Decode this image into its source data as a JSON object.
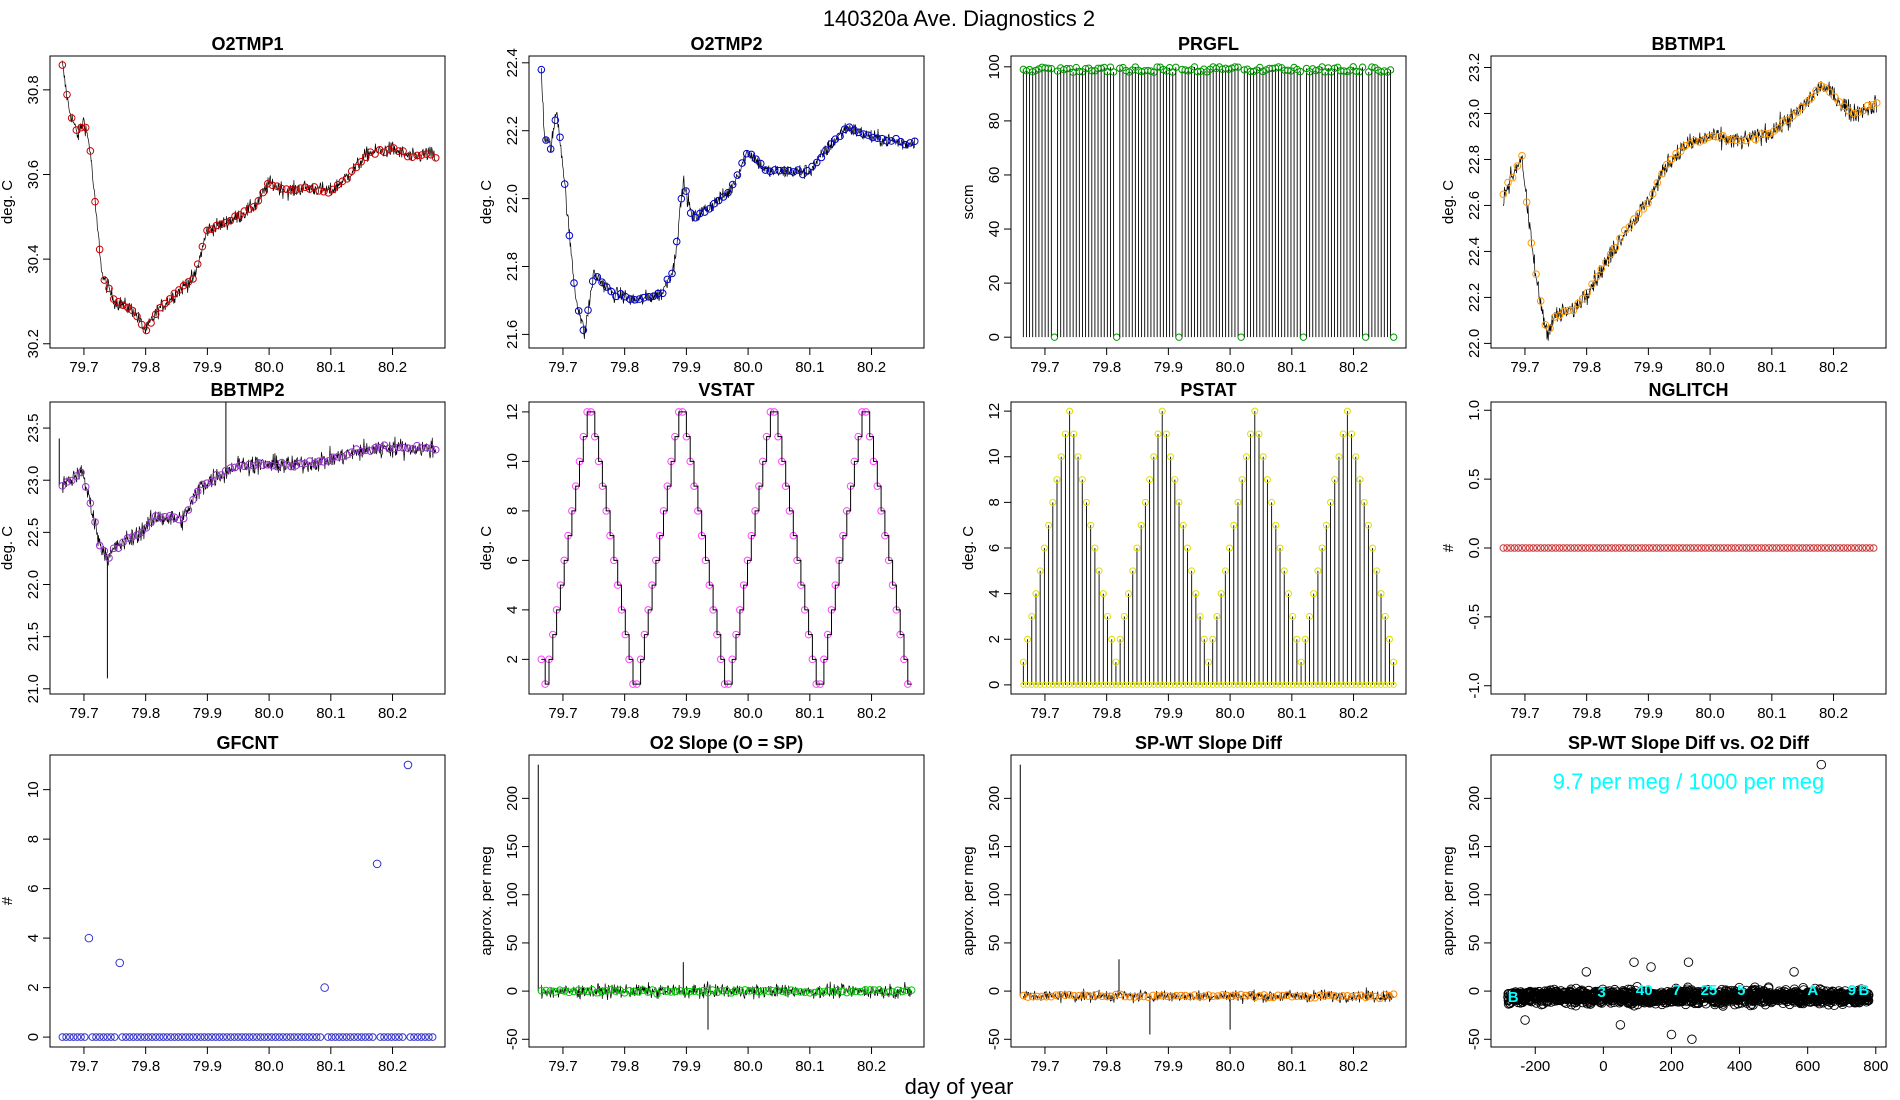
{
  "figure": {
    "title": "140320a   Ave. Diagnostics 2",
    "xlabel": "day of year"
  },
  "chart_data": [
    {
      "id": "p1",
      "type": "line",
      "title": "O2TMP1",
      "ylabel": "deg. C",
      "xlim": [
        79.645,
        80.285
      ],
      "ylim": [
        30.19,
        30.88
      ],
      "xticks": [
        79.7,
        79.8,
        79.9,
        80.0,
        80.1,
        80.2
      ],
      "xtick_labels": [
        "79.7",
        "79.8",
        "79.9",
        "80.0",
        "80.1",
        "80.2"
      ],
      "yticks": [
        30.2,
        30.4,
        30.6,
        30.8
      ],
      "ytick_labels": [
        "30.2",
        "30.4",
        "30.6",
        "30.8"
      ],
      "marker_color": "#cc0000",
      "noise": 0.018,
      "x": [
        79.665,
        79.675,
        79.69,
        79.7,
        79.71,
        79.72,
        79.73,
        79.75,
        79.78,
        79.8,
        79.82,
        79.85,
        79.88,
        79.9,
        79.92,
        79.95,
        79.98,
        80.0,
        80.03,
        80.06,
        80.1,
        80.13,
        80.16,
        80.2,
        80.23,
        80.26,
        80.27
      ],
      "y": [
        30.86,
        30.76,
        30.69,
        30.73,
        30.66,
        30.5,
        30.36,
        30.3,
        30.28,
        30.23,
        30.28,
        30.32,
        30.36,
        30.47,
        30.48,
        30.5,
        30.53,
        30.58,
        30.56,
        30.57,
        30.56,
        30.6,
        30.65,
        30.66,
        30.64,
        30.65,
        30.64
      ]
    },
    {
      "id": "p2",
      "type": "line",
      "title": "O2TMP2",
      "ylabel": "deg. C",
      "xlim": [
        79.645,
        80.285
      ],
      "ylim": [
        21.56,
        22.42
      ],
      "xticks": [
        79.7,
        79.8,
        79.9,
        80.0,
        80.1,
        80.2
      ],
      "xtick_labels": [
        "79.7",
        "79.8",
        "79.9",
        "80.0",
        "80.1",
        "80.2"
      ],
      "yticks": [
        21.6,
        21.8,
        22.0,
        22.2,
        22.4
      ],
      "ytick_labels": [
        "21.6",
        "21.8",
        "22.0",
        "22.2",
        "22.4"
      ],
      "marker_color": "#0000cc",
      "noise": 0.022,
      "x": [
        79.665,
        79.67,
        79.68,
        79.69,
        79.7,
        79.71,
        79.72,
        79.735,
        79.75,
        79.78,
        79.82,
        79.86,
        79.88,
        79.895,
        79.91,
        79.94,
        79.97,
        80.0,
        80.03,
        80.06,
        80.1,
        80.13,
        80.16,
        80.2,
        80.23,
        80.26,
        80.27
      ],
      "y": [
        22.38,
        22.18,
        22.15,
        22.26,
        22.1,
        21.9,
        21.72,
        21.6,
        21.78,
        21.72,
        21.7,
        21.72,
        21.8,
        22.05,
        21.94,
        21.98,
        22.02,
        22.14,
        22.08,
        22.08,
        22.08,
        22.15,
        22.21,
        22.18,
        22.17,
        22.16,
        22.17
      ]
    },
    {
      "id": "p3",
      "type": "bar",
      "title": "PRGFL",
      "ylabel": "sccm",
      "xlim": [
        79.645,
        80.285
      ],
      "ylim": [
        -4,
        104
      ],
      "xticks": [
        79.7,
        79.8,
        79.9,
        80.0,
        80.1,
        80.2
      ],
      "xtick_labels": [
        "79.7",
        "79.8",
        "79.9",
        "80.0",
        "80.1",
        "80.2"
      ],
      "yticks": [
        0,
        20,
        40,
        60,
        80,
        100
      ],
      "ytick_labels": [
        "0",
        "20",
        "40",
        "60",
        "80",
        "100"
      ],
      "marker_color": "#009900",
      "x_start": 79.665,
      "x_end": 80.265,
      "count": 120,
      "high": 100,
      "low": 0
    },
    {
      "id": "p4",
      "type": "line",
      "title": "BBTMP1",
      "ylabel": "deg. C",
      "xlim": [
        79.645,
        80.285
      ],
      "ylim": [
        21.98,
        23.25
      ],
      "xticks": [
        79.7,
        79.8,
        79.9,
        80.0,
        80.1,
        80.2
      ],
      "xtick_labels": [
        "79.7",
        "79.8",
        "79.9",
        "80.0",
        "80.1",
        "80.2"
      ],
      "yticks": [
        22.0,
        22.2,
        22.4,
        22.6,
        22.8,
        23.0,
        23.2
      ],
      "ytick_labels": [
        "22.0",
        "22.2",
        "22.4",
        "22.6",
        "22.8",
        "23.0",
        "23.2"
      ],
      "marker_color": "#ff9900",
      "noise": 0.04,
      "x": [
        79.665,
        79.68,
        79.695,
        79.705,
        79.72,
        79.735,
        79.75,
        79.78,
        79.82,
        79.86,
        79.9,
        79.93,
        79.96,
        80.0,
        80.05,
        80.1,
        80.14,
        80.18,
        80.2,
        80.23,
        80.26,
        80.27
      ],
      "y": [
        22.65,
        22.73,
        22.82,
        22.55,
        22.25,
        22.05,
        22.12,
        22.15,
        22.3,
        22.48,
        22.62,
        22.78,
        22.86,
        22.9,
        22.88,
        22.92,
        23.0,
        23.12,
        23.08,
        23.0,
        23.03,
        23.04
      ]
    },
    {
      "id": "p5",
      "type": "line",
      "title": "BBTMP2",
      "ylabel": "deg. C",
      "xlim": [
        79.645,
        80.285
      ],
      "ylim": [
        20.95,
        23.75
      ],
      "xticks": [
        79.7,
        79.8,
        79.9,
        80.0,
        80.1,
        80.2
      ],
      "xtick_labels": [
        "79.7",
        "79.8",
        "79.9",
        "80.0",
        "80.1",
        "80.2"
      ],
      "yticks": [
        21.0,
        21.5,
        22.0,
        22.5,
        23.0,
        23.5
      ],
      "ytick_labels": [
        "21.0",
        "21.5",
        "22.0",
        "22.5",
        "23.0",
        "23.5"
      ],
      "marker_color": "#9933cc",
      "noise": 0.09,
      "x": [
        79.665,
        79.68,
        79.695,
        79.71,
        79.725,
        79.74,
        79.75,
        79.78,
        79.82,
        79.86,
        79.89,
        79.92,
        79.95,
        80.0,
        80.05,
        80.1,
        80.15,
        80.2,
        80.25,
        80.27
      ],
      "y": [
        22.95,
        23.0,
        23.1,
        22.8,
        22.4,
        22.25,
        22.35,
        22.45,
        22.65,
        22.62,
        22.95,
        23.05,
        23.15,
        23.15,
        23.15,
        23.2,
        23.28,
        23.32,
        23.3,
        23.3
      ],
      "spikes": [
        [
          79.738,
          21.1
        ],
        [
          79.93,
          23.75
        ],
        [
          79.66,
          23.4
        ]
      ]
    },
    {
      "id": "p6",
      "type": "step",
      "title": "VSTAT",
      "ylabel": "deg. C",
      "xlim": [
        79.645,
        80.285
      ],
      "ylim": [
        0.6,
        12.4
      ],
      "xticks": [
        79.7,
        79.8,
        79.9,
        80.0,
        80.1,
        80.2
      ],
      "xtick_labels": [
        "79.7",
        "79.8",
        "79.9",
        "80.0",
        "80.1",
        "80.2"
      ],
      "yticks": [
        2,
        4,
        6,
        8,
        10,
        12
      ],
      "ytick_labels": [
        "2",
        "4",
        "6",
        "8",
        "10",
        "12"
      ],
      "marker_color": "#ff44ff",
      "x_start": 79.665,
      "x_end": 80.265,
      "pattern": [
        2,
        1,
        2,
        3,
        4,
        5,
        6,
        7,
        8,
        9,
        10,
        11,
        12,
        12,
        11,
        10,
        9,
        8,
        7,
        6,
        5,
        4,
        3,
        2,
        1,
        1,
        2,
        3,
        4,
        5,
        6,
        7,
        8,
        9,
        10,
        11,
        12,
        12,
        11,
        10,
        9,
        8,
        7,
        6,
        5,
        4,
        3,
        2,
        1,
        1,
        2,
        3,
        4,
        5,
        6,
        7,
        8,
        9,
        10,
        11,
        12,
        12,
        11,
        10,
        9,
        8,
        7,
        6,
        5,
        4,
        3,
        2,
        1,
        1,
        2,
        3,
        4,
        5,
        6,
        7,
        8,
        9,
        10,
        11,
        12,
        12,
        11,
        10,
        9,
        8,
        7,
        6,
        5,
        4,
        3,
        2,
        1
      ]
    },
    {
      "id": "p7",
      "type": "bar",
      "title": "PSTAT",
      "ylabel": "deg. C",
      "xlim": [
        79.645,
        80.285
      ],
      "ylim": [
        -0.4,
        12.4
      ],
      "xticks": [
        79.7,
        79.8,
        79.9,
        80.0,
        80.1,
        80.2
      ],
      "xtick_labels": [
        "79.7",
        "79.8",
        "79.9",
        "80.0",
        "80.1",
        "80.2"
      ],
      "yticks": [
        0,
        2,
        4,
        6,
        8,
        10,
        12
      ],
      "ytick_labels": [
        "0",
        "2",
        "4",
        "6",
        "8",
        "10",
        "12"
      ],
      "marker_color": "#dddd00",
      "x_start": 79.665,
      "x_end": 80.265,
      "pattern": [
        1,
        2,
        3,
        4,
        5,
        6,
        7,
        8,
        9,
        10,
        11,
        12,
        11,
        10,
        9,
        8,
        7,
        6,
        5,
        4,
        3,
        2,
        1,
        2,
        3,
        4,
        5,
        6,
        7,
        8,
        9,
        10,
        11,
        12,
        11,
        10,
        9,
        8,
        7,
        6,
        5,
        4,
        3,
        2,
        1,
        2,
        3,
        4,
        5,
        6,
        7,
        8,
        9,
        10,
        11,
        12,
        11,
        10,
        9,
        8,
        7,
        6,
        5,
        4,
        3,
        2,
        1,
        2,
        3,
        4,
        5,
        6,
        7,
        8,
        9,
        10,
        11,
        12,
        11,
        10,
        9,
        8,
        7,
        6,
        5,
        4,
        3,
        2,
        1
      ]
    },
    {
      "id": "p8",
      "type": "scatter",
      "title": "NGLITCH",
      "ylabel": "#",
      "xlim": [
        79.645,
        80.285
      ],
      "ylim": [
        -1.06,
        1.06
      ],
      "xticks": [
        79.7,
        79.8,
        79.9,
        80.0,
        80.1,
        80.2
      ],
      "xtick_labels": [
        "79.7",
        "79.8",
        "79.9",
        "80.0",
        "80.1",
        "80.2"
      ],
      "yticks": [
        -1.0,
        -0.5,
        0.0,
        0.5,
        1.0
      ],
      "ytick_labels": [
        "-1.0",
        "-0.5",
        "0.0",
        "0.5",
        "1.0"
      ],
      "marker_color": "#cc3333",
      "x_start": 79.665,
      "x_end": 80.265,
      "count": 100,
      "value": 0
    },
    {
      "id": "p9",
      "type": "scatter",
      "title": "GFCNT",
      "ylabel": "#",
      "xlim": [
        79.645,
        80.285
      ],
      "ylim": [
        -0.4,
        11.4
      ],
      "xticks": [
        79.7,
        79.8,
        79.9,
        80.0,
        80.1,
        80.2
      ],
      "xtick_labels": [
        "79.7",
        "79.8",
        "79.9",
        "80.0",
        "80.1",
        "80.2"
      ],
      "yticks": [
        0,
        2,
        4,
        6,
        8,
        10
      ],
      "ytick_labels": [
        "0",
        "2",
        "4",
        "6",
        "8",
        "10"
      ],
      "marker_color": "#3333cc",
      "x_start": 79.665,
      "x_end": 80.265,
      "count": 100,
      "value": 0,
      "outliers": [
        [
          79.708,
          4
        ],
        [
          79.758,
          3
        ],
        [
          80.09,
          2
        ],
        [
          80.175,
          7
        ],
        [
          80.225,
          11
        ]
      ]
    },
    {
      "id": "p10",
      "type": "line",
      "title": "O2 Slope (O = SP)",
      "ylabel": "approx. per meg",
      "xlim": [
        79.645,
        80.285
      ],
      "ylim": [
        -58,
        245
      ],
      "xticks": [
        79.7,
        79.8,
        79.9,
        80.0,
        80.1,
        80.2
      ],
      "xtick_labels": [
        "79.7",
        "79.8",
        "79.9",
        "80.0",
        "80.1",
        "80.2"
      ],
      "yticks": [
        -50,
        0,
        50,
        100,
        150,
        200
      ],
      "ytick_labels": [
        "-50",
        "0",
        "50",
        "100",
        "150",
        "200"
      ],
      "marker_color": "#00cc00",
      "noise": 7,
      "x": [
        79.665,
        80.265
      ],
      "y": [
        0,
        0
      ],
      "spikes": [
        [
          79.66,
          235
        ],
        [
          79.895,
          30
        ],
        [
          79.935,
          -40
        ]
      ]
    },
    {
      "id": "p11",
      "type": "line",
      "title": "SP-WT Slope Diff",
      "ylabel": "approx. per meg",
      "xlim": [
        79.645,
        80.285
      ],
      "ylim": [
        -58,
        245
      ],
      "xticks": [
        79.7,
        79.8,
        79.9,
        80.0,
        80.1,
        80.2
      ],
      "xtick_labels": [
        "79.7",
        "79.8",
        "79.9",
        "80.0",
        "80.1",
        "80.2"
      ],
      "yticks": [
        -50,
        0,
        50,
        100,
        150,
        200
      ],
      "ytick_labels": [
        "-50",
        "0",
        "50",
        "100",
        "150",
        "200"
      ],
      "marker_color": "#ff8800",
      "noise": 6,
      "x": [
        79.665,
        80.265
      ],
      "y": [
        -5,
        -5
      ],
      "spikes": [
        [
          79.66,
          235
        ],
        [
          79.82,
          33
        ],
        [
          79.87,
          -45
        ],
        [
          80.0,
          -40
        ]
      ]
    },
    {
      "id": "p12",
      "type": "scatter",
      "title": "SP-WT Slope Diff vs. O2 Diff",
      "ylabel": "approx. per meg",
      "xlim": [
        -330,
        830
      ],
      "ylim": [
        -58,
        245
      ],
      "xticks": [
        -200,
        0,
        200,
        400,
        600,
        800
      ],
      "xtick_labels": [
        "-200",
        "0",
        "200",
        "400",
        "600",
        "800"
      ],
      "yticks": [
        -50,
        0,
        50,
        100,
        150,
        200
      ],
      "ytick_labels": [
        "-50",
        "0",
        "50",
        "100",
        "150",
        "200"
      ],
      "annotation": "9.7 per meg / 1000 per meg",
      "cloud_x_range": [
        -280,
        780
      ],
      "cluster_labels": [
        {
          "text": "B",
          "x": -265,
          "y": -5
        },
        {
          "text": "3",
          "x": -5,
          "y": 0
        },
        {
          "text": "40",
          "x": 120,
          "y": 2
        },
        {
          "text": "7",
          "x": 215,
          "y": 2
        },
        {
          "text": "25",
          "x": 310,
          "y": 2
        },
        {
          "text": "5",
          "x": 405,
          "y": 2
        },
        {
          "text": "A",
          "x": 615,
          "y": 2
        },
        {
          "text": "9",
          "x": 730,
          "y": 2
        },
        {
          "text": "B",
          "x": 765,
          "y": 2
        }
      ],
      "outlier_points": [
        [
          640,
          235
        ],
        [
          90,
          30
        ],
        [
          140,
          25
        ],
        [
          250,
          30
        ],
        [
          -50,
          20
        ],
        [
          560,
          20
        ],
        [
          200,
          -45
        ],
        [
          260,
          -50
        ],
        [
          -230,
          -30
        ],
        [
          50,
          -35
        ]
      ]
    }
  ]
}
